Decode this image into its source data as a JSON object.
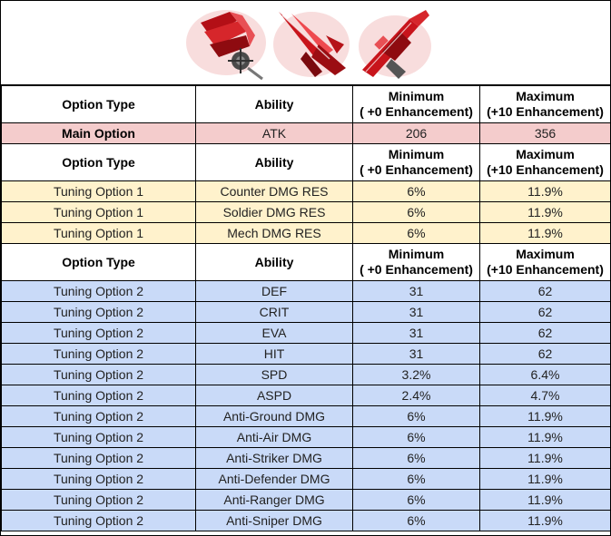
{
  "header": {
    "option_type": "Option Type",
    "ability": "Ability",
    "min_line1": "Minimum",
    "min_line2": "( +0 Enhancement)",
    "max_line1": "Maximum",
    "max_line2": "(+10 Enhancement)"
  },
  "banner": {
    "icons": [
      "mace-weapon-icon",
      "dart-weapon-icon",
      "rifle-weapon-icon"
    ],
    "accent": "#c0121a"
  },
  "main_option": {
    "type": "Main Option",
    "ability": "ATK",
    "min": "206",
    "max": "356"
  },
  "tuning1": [
    {
      "type": "Tuning Option 1",
      "ability": "Counter DMG RES",
      "min": "6%",
      "max": "11.9%"
    },
    {
      "type": "Tuning Option 1",
      "ability": "Soldier DMG RES",
      "min": "6%",
      "max": "11.9%"
    },
    {
      "type": "Tuning Option 1",
      "ability": "Mech DMG RES",
      "min": "6%",
      "max": "11.9%"
    }
  ],
  "tuning2": [
    {
      "type": "Tuning Option 2",
      "ability": "DEF",
      "min": "31",
      "max": "62"
    },
    {
      "type": "Tuning Option 2",
      "ability": "CRIT",
      "min": "31",
      "max": "62"
    },
    {
      "type": "Tuning Option 2",
      "ability": "EVA",
      "min": "31",
      "max": "62"
    },
    {
      "type": "Tuning Option 2",
      "ability": "HIT",
      "min": "31",
      "max": "62"
    },
    {
      "type": "Tuning Option 2",
      "ability": "SPD",
      "min": "3.2%",
      "max": "6.4%"
    },
    {
      "type": "Tuning Option 2",
      "ability": "ASPD",
      "min": "2.4%",
      "max": "4.7%"
    },
    {
      "type": "Tuning Option 2",
      "ability": "Anti-Ground DMG",
      "min": "6%",
      "max": "11.9%"
    },
    {
      "type": "Tuning Option 2",
      "ability": "Anti-Air DMG",
      "min": "6%",
      "max": "11.9%"
    },
    {
      "type": "Tuning Option 2",
      "ability": "Anti-Striker DMG",
      "min": "6%",
      "max": "11.9%"
    },
    {
      "type": "Tuning Option 2",
      "ability": "Anti-Defender DMG",
      "min": "6%",
      "max": "11.9%"
    },
    {
      "type": "Tuning Option 2",
      "ability": "Anti-Ranger DMG",
      "min": "6%",
      "max": "11.9%"
    },
    {
      "type": "Tuning Option 2",
      "ability": "Anti-Sniper DMG",
      "min": "6%",
      "max": "11.9%"
    }
  ],
  "colors": {
    "main_row": "#f4cccc",
    "tuning1_row": "#fff2cc",
    "tuning2_row": "#c9daf8"
  }
}
